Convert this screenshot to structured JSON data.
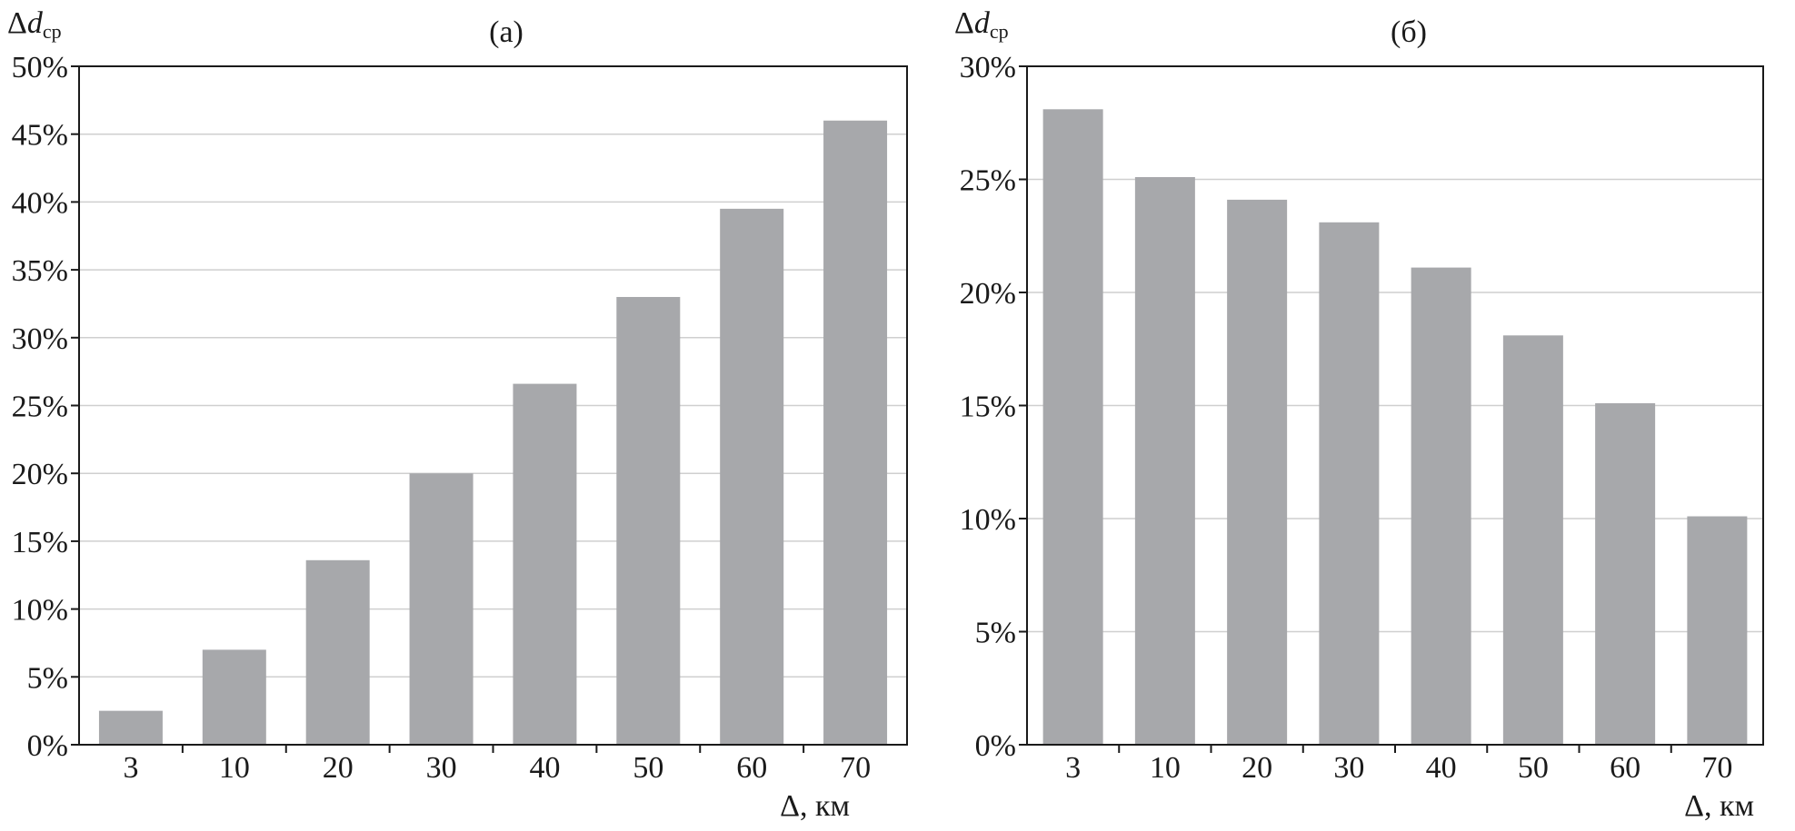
{
  "chart_data": [
    {
      "type": "bar",
      "title": "(а)",
      "ylabel_symbol": "Δ",
      "ylabel_var": "d",
      "ylabel_sub": "ср",
      "xlabel": "Δ, км",
      "categories": [
        "3",
        "10",
        "20",
        "30",
        "40",
        "50",
        "60",
        "70"
      ],
      "values": [
        2.5,
        7,
        13.6,
        20,
        26.6,
        33,
        39.5,
        46
      ],
      "ylim": [
        0,
        50
      ],
      "yticks": [
        0,
        5,
        10,
        15,
        20,
        25,
        30,
        35,
        40,
        45,
        50
      ],
      "ytick_labels": [
        "0%",
        "5%",
        "10%",
        "15%",
        "20%",
        "25%",
        "30%",
        "35%",
        "40%",
        "45%",
        "50%"
      ],
      "grid": true,
      "bar_color": "#a7a8ab",
      "grid_color": "#cfcfcf"
    },
    {
      "type": "bar",
      "title": "(б)",
      "ylabel_symbol": "Δ",
      "ylabel_var": "d",
      "ylabel_sub": "ср",
      "xlabel": "Δ, км",
      "categories": [
        "3",
        "10",
        "20",
        "30",
        "40",
        "50",
        "60",
        "70"
      ],
      "values": [
        28.1,
        25.1,
        24.1,
        23.1,
        21.1,
        18.1,
        15.1,
        10.1
      ],
      "ylim": [
        0,
        30
      ],
      "yticks": [
        0,
        5,
        10,
        15,
        20,
        25,
        30
      ],
      "ytick_labels": [
        "0%",
        "5%",
        "10%",
        "15%",
        "20%",
        "25%",
        "30%"
      ],
      "grid": true,
      "bar_color": "#a7a8ab",
      "grid_color": "#cfcfcf"
    }
  ]
}
